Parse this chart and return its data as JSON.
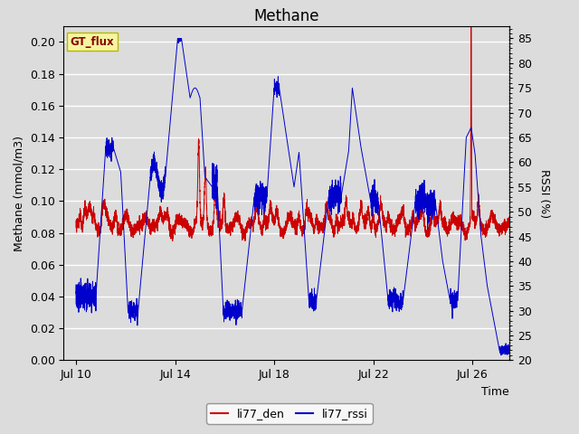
{
  "title": "Methane",
  "ylabel_left": "Methane (mmol/m3)",
  "ylabel_right": "RSSI (%)",
  "xlabel": "Time",
  "xlim_days": [
    9.5,
    27.5
  ],
  "ylim_left": [
    0.0,
    0.21
  ],
  "ylim_right": [
    20,
    87.5
  ],
  "xtick_labels": [
    "Jul 10",
    "Jul 14",
    "Jul 18",
    "Jul 22",
    "Jul 26"
  ],
  "xtick_positions": [
    10,
    14,
    18,
    22,
    26
  ],
  "bg_color": "#dcdcdc",
  "line1_color": "#cc0000",
  "line2_color": "#0000cc",
  "legend_label1": "li77_den",
  "legend_label2": "li77_rssi",
  "watermark_text": "GT_flux",
  "watermark_color": "#8b0000",
  "watermark_bg": "#f5f5a0",
  "title_fontsize": 12,
  "axis_fontsize": 9,
  "tick_fontsize": 9
}
